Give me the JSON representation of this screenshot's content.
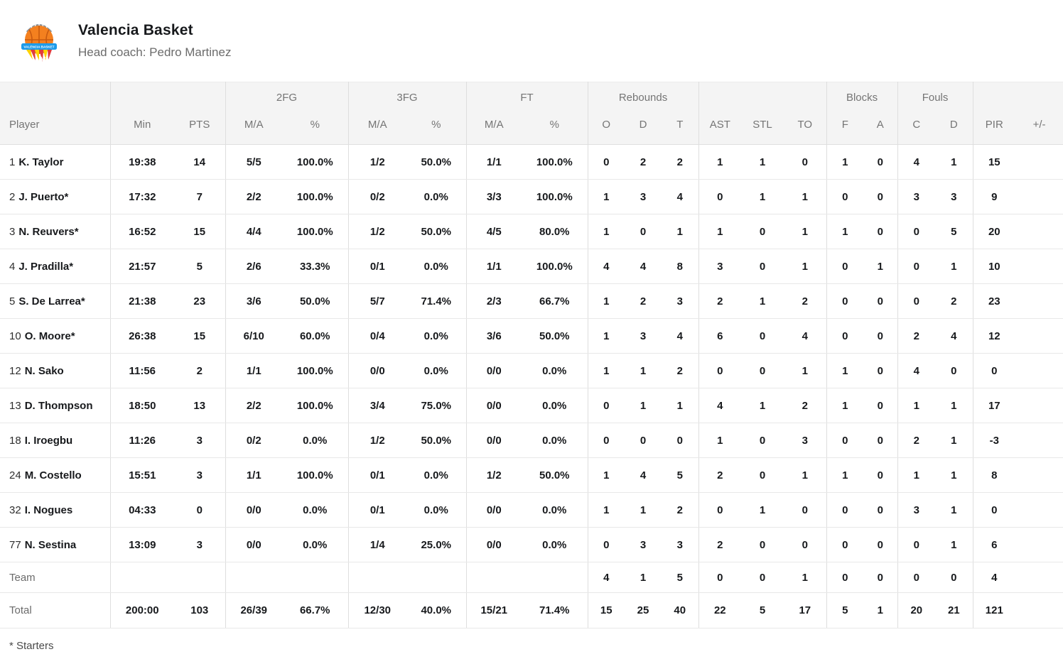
{
  "header": {
    "team_name": "Valencia Basket",
    "head_coach": "Head coach: Pedro Martinez",
    "logo_banner_text": "VALENCIA BASKET"
  },
  "colors": {
    "header_bg": "#f4f4f4",
    "header_text": "#757575",
    "body_text": "#17191c",
    "muted_text": "#6b6b6b",
    "ball_orange": "#f4801f",
    "banner_blue": "#1e9be9",
    "accent_red": "#e03a3e",
    "accent_yellow": "#ffd200",
    "crown_gray": "#8a9299"
  },
  "table": {
    "group_labels": {
      "fg2": "2FG",
      "fg3": "3FG",
      "ft": "FT",
      "rebounds": "Rebounds",
      "blocks": "Blocks",
      "fouls": "Fouls"
    },
    "column_labels": {
      "player": "Player",
      "min": "Min",
      "pts": "PTS",
      "ma": "M/A",
      "pct": "%",
      "reb_o": "O",
      "reb_d": "D",
      "reb_t": "T",
      "ast": "AST",
      "stl": "STL",
      "to": "TO",
      "blk_f": "F",
      "blk_a": "A",
      "foul_c": "C",
      "foul_d": "D",
      "pir": "PIR",
      "plus_minus": "+/-"
    },
    "column_keys": [
      "min",
      "pts",
      "fg2_ma",
      "fg2_pct",
      "fg3_ma",
      "fg3_pct",
      "ft_ma",
      "ft_pct",
      "reb_o",
      "reb_d",
      "reb_t",
      "ast",
      "stl",
      "to",
      "blk_f",
      "blk_a",
      "foul_c",
      "foul_d",
      "pir",
      "plus_minus"
    ],
    "rows": [
      {
        "number": "1",
        "name": "K. Taylor",
        "starter": false,
        "cells": [
          "19:38",
          "14",
          "5/5",
          "100.0%",
          "1/2",
          "50.0%",
          "1/1",
          "100.0%",
          "0",
          "2",
          "2",
          "1",
          "1",
          "0",
          "1",
          "0",
          "4",
          "1",
          "15",
          ""
        ]
      },
      {
        "number": "2",
        "name": "J. Puerto",
        "starter": true,
        "cells": [
          "17:32",
          "7",
          "2/2",
          "100.0%",
          "0/2",
          "0.0%",
          "3/3",
          "100.0%",
          "1",
          "3",
          "4",
          "0",
          "1",
          "1",
          "0",
          "0",
          "3",
          "3",
          "9",
          ""
        ]
      },
      {
        "number": "3",
        "name": "N. Reuvers",
        "starter": true,
        "cells": [
          "16:52",
          "15",
          "4/4",
          "100.0%",
          "1/2",
          "50.0%",
          "4/5",
          "80.0%",
          "1",
          "0",
          "1",
          "1",
          "0",
          "1",
          "1",
          "0",
          "0",
          "5",
          "20",
          ""
        ]
      },
      {
        "number": "4",
        "name": "J. Pradilla",
        "starter": true,
        "cells": [
          "21:57",
          "5",
          "2/6",
          "33.3%",
          "0/1",
          "0.0%",
          "1/1",
          "100.0%",
          "4",
          "4",
          "8",
          "3",
          "0",
          "1",
          "0",
          "1",
          "0",
          "1",
          "10",
          ""
        ]
      },
      {
        "number": "5",
        "name": "S. De Larrea",
        "starter": true,
        "cells": [
          "21:38",
          "23",
          "3/6",
          "50.0%",
          "5/7",
          "71.4%",
          "2/3",
          "66.7%",
          "1",
          "2",
          "3",
          "2",
          "1",
          "2",
          "0",
          "0",
          "0",
          "2",
          "23",
          ""
        ]
      },
      {
        "number": "10",
        "name": "O. Moore",
        "starter": true,
        "cells": [
          "26:38",
          "15",
          "6/10",
          "60.0%",
          "0/4",
          "0.0%",
          "3/6",
          "50.0%",
          "1",
          "3",
          "4",
          "6",
          "0",
          "4",
          "0",
          "0",
          "2",
          "4",
          "12",
          ""
        ]
      },
      {
        "number": "12",
        "name": "N. Sako",
        "starter": false,
        "cells": [
          "11:56",
          "2",
          "1/1",
          "100.0%",
          "0/0",
          "0.0%",
          "0/0",
          "0.0%",
          "1",
          "1",
          "2",
          "0",
          "0",
          "1",
          "1",
          "0",
          "4",
          "0",
          "0",
          ""
        ]
      },
      {
        "number": "13",
        "name": "D. Thompson",
        "starter": false,
        "cells": [
          "18:50",
          "13",
          "2/2",
          "100.0%",
          "3/4",
          "75.0%",
          "0/0",
          "0.0%",
          "0",
          "1",
          "1",
          "4",
          "1",
          "2",
          "1",
          "0",
          "1",
          "1",
          "17",
          ""
        ]
      },
      {
        "number": "18",
        "name": "I. Iroegbu",
        "starter": false,
        "cells": [
          "11:26",
          "3",
          "0/2",
          "0.0%",
          "1/2",
          "50.0%",
          "0/0",
          "0.0%",
          "0",
          "0",
          "0",
          "1",
          "0",
          "3",
          "0",
          "0",
          "2",
          "1",
          "-3",
          ""
        ]
      },
      {
        "number": "24",
        "name": "M. Costello",
        "starter": false,
        "cells": [
          "15:51",
          "3",
          "1/1",
          "100.0%",
          "0/1",
          "0.0%",
          "1/2",
          "50.0%",
          "1",
          "4",
          "5",
          "2",
          "0",
          "1",
          "1",
          "0",
          "1",
          "1",
          "8",
          ""
        ]
      },
      {
        "number": "32",
        "name": "I. Nogues",
        "starter": false,
        "cells": [
          "04:33",
          "0",
          "0/0",
          "0.0%",
          "0/1",
          "0.0%",
          "0/0",
          "0.0%",
          "1",
          "1",
          "2",
          "0",
          "1",
          "0",
          "0",
          "0",
          "3",
          "1",
          "0",
          ""
        ]
      },
      {
        "number": "77",
        "name": "N. Sestina",
        "starter": false,
        "cells": [
          "13:09",
          "3",
          "0/0",
          "0.0%",
          "1/4",
          "25.0%",
          "0/0",
          "0.0%",
          "0",
          "3",
          "3",
          "2",
          "0",
          "0",
          "0",
          "0",
          "0",
          "1",
          "6",
          ""
        ]
      }
    ],
    "team_row": {
      "label": "Team",
      "cells": [
        "",
        "",
        "",
        "",
        "",
        "",
        "",
        "",
        "4",
        "1",
        "5",
        "0",
        "0",
        "1",
        "0",
        "0",
        "0",
        "0",
        "4",
        ""
      ]
    },
    "total_row": {
      "label": "Total",
      "cells": [
        "200:00",
        "103",
        "26/39",
        "66.7%",
        "12/30",
        "40.0%",
        "15/21",
        "71.4%",
        "15",
        "25",
        "40",
        "22",
        "5",
        "17",
        "5",
        "1",
        "20",
        "21",
        "121",
        ""
      ]
    }
  },
  "footnote": "* Starters"
}
